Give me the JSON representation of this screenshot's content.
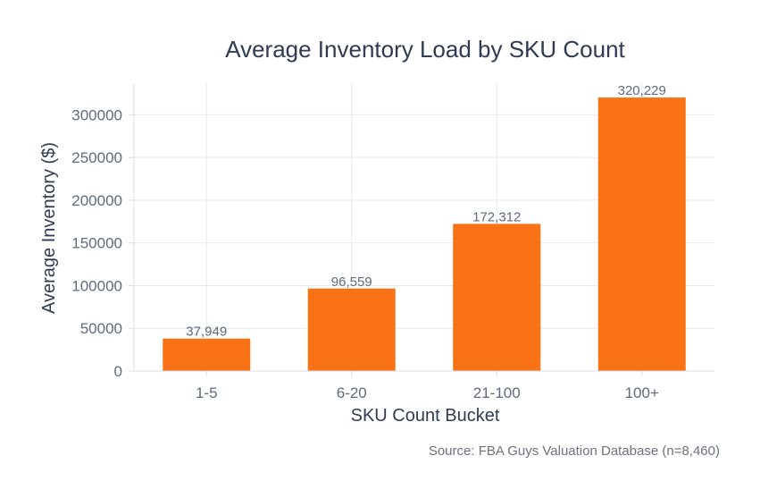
{
  "chart_data": {
    "type": "bar",
    "title": "Average Inventory Load by SKU Count",
    "xlabel": "SKU Count Bucket",
    "ylabel": "Average Inventory ($)",
    "categories": [
      "1-5",
      "6-20",
      "21-100",
      "100+"
    ],
    "values": [
      37949,
      96559,
      172312,
      320229
    ],
    "data_labels": [
      "37,949",
      "96,559",
      "172,312",
      "320,229"
    ],
    "y_ticks": [
      0,
      50000,
      100000,
      150000,
      200000,
      250000,
      300000
    ],
    "y_tick_labels": [
      "0",
      "50000",
      "100000",
      "150000",
      "200000",
      "250000",
      "300000"
    ],
    "ylim": [
      0,
      336000
    ],
    "grid": true,
    "source": "Source: FBA Guys Valuation Database (n=8,460)"
  },
  "colors": {
    "bar": "#f97316",
    "grid": "#e7e9ee",
    "axis": "#d9dde3"
  }
}
